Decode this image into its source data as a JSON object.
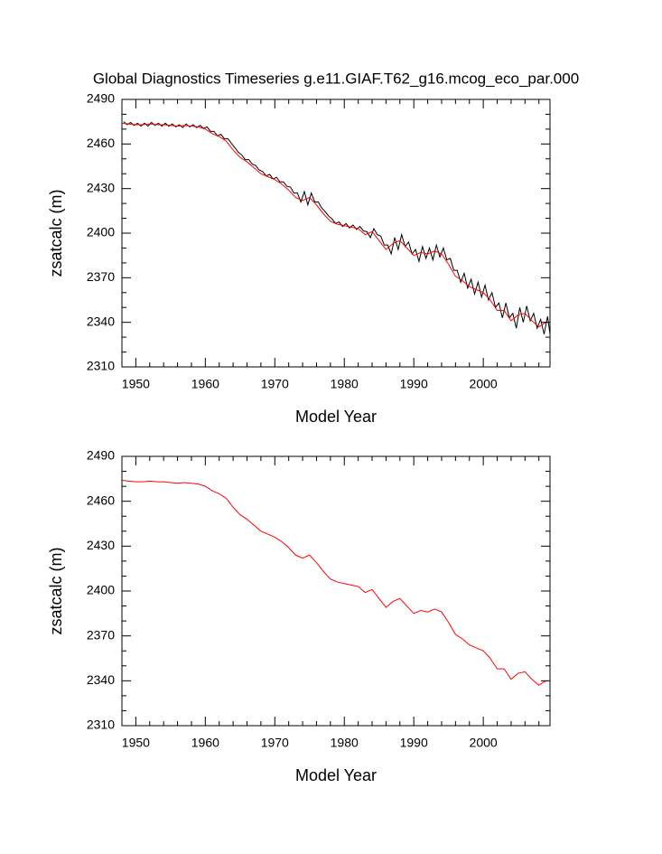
{
  "chart_data": [
    {
      "type": "line",
      "title": "Global Diagnostics Timeseries g.e11.GIAF.T62_g16.mcog_eco_par.000",
      "xlabel": "Model Year",
      "ylabel": "zsatcalc (m)",
      "xlim": [
        1948,
        2009.6
      ],
      "ylim": [
        2310,
        2490
      ],
      "xticks": [
        1950,
        1960,
        1970,
        1980,
        1990,
        2000
      ],
      "xminorticks": [
        1948,
        1952,
        1954,
        1956,
        1958,
        1962,
        1964,
        1966,
        1968,
        1972,
        1974,
        1976,
        1978,
        1982,
        1984,
        1986,
        1988,
        1992,
        1994,
        1996,
        1998,
        2002,
        2004,
        2006,
        2008
      ],
      "yticks": [
        2310,
        2340,
        2370,
        2400,
        2430,
        2460,
        2490
      ],
      "yminorticks": [
        2320,
        2330,
        2350,
        2360,
        2380,
        2390,
        2410,
        2420,
        2440,
        2450,
        2470,
        2480
      ],
      "series": [
        {
          "color": "#000000",
          "x": [
            1948.25,
            1948.75,
            1949.25,
            1949.75,
            1950.25,
            1950.75,
            1951.25,
            1951.75,
            1952.25,
            1952.75,
            1953.25,
            1953.75,
            1954.25,
            1954.75,
            1955.25,
            1955.75,
            1956.25,
            1956.75,
            1957.25,
            1957.75,
            1958.25,
            1958.75,
            1959.25,
            1959.75,
            1960.25,
            1960.75,
            1961.25,
            1961.75,
            1962.25,
            1962.75,
            1963.25,
            1963.75,
            1964.25,
            1964.75,
            1965.25,
            1965.75,
            1966.25,
            1966.75,
            1967.25,
            1967.75,
            1968.25,
            1968.75,
            1969.25,
            1969.75,
            1970.25,
            1970.75,
            1971.25,
            1971.75,
            1972.25,
            1972.75,
            1973.25,
            1973.75,
            1974.25,
            1974.75,
            1975.25,
            1975.75,
            1976.25,
            1976.75,
            1977.25,
            1977.75,
            1978.25,
            1978.75,
            1979.25,
            1979.75,
            1980.25,
            1980.75,
            1981.25,
            1981.75,
            1982.25,
            1982.75,
            1983.25,
            1983.75,
            1984.25,
            1984.75,
            1985.25,
            1985.75,
            1986.25,
            1986.75,
            1987.25,
            1987.75,
            1988.25,
            1988.75,
            1989.25,
            1989.75,
            1990.25,
            1990.75,
            1991.25,
            1991.75,
            1992.25,
            1992.75,
            1993.25,
            1993.75,
            1994.25,
            1994.75,
            1995.25,
            1995.75,
            1996.25,
            1996.75,
            1997.25,
            1997.75,
            1998.25,
            1998.75,
            1999.25,
            1999.75,
            2000.25,
            2000.75,
            2001.25,
            2001.75,
            2002.25,
            2002.75,
            2003.25,
            2003.75,
            2004.25,
            2004.75,
            2005.25,
            2005.75,
            2006.25,
            2006.75,
            2007.25,
            2007.75,
            2008.25,
            2008.75,
            2009.25,
            2009.6
          ],
          "values": [
            2475,
            2473,
            2474.5,
            2472.5,
            2474,
            2472,
            2474,
            2472,
            2474.5,
            2472.5,
            2474,
            2472,
            2474,
            2472,
            2473.5,
            2471.5,
            2473,
            2471,
            2473.5,
            2471.5,
            2473,
            2471,
            2472.5,
            2470.5,
            2471.5,
            2468.5,
            2468.5,
            2465.5,
            2466.5,
            2463.5,
            2463.5,
            2460.5,
            2457.5,
            2454.5,
            2452.5,
            2449.5,
            2449.5,
            2446.5,
            2445.5,
            2442.5,
            2441.5,
            2438.5,
            2439.5,
            2436.5,
            2437.5,
            2434.5,
            2434.5,
            2431.5,
            2431,
            2427,
            2427,
            2421,
            2428,
            2419,
            2427,
            2421,
            2421,
            2417,
            2414.5,
            2411.5,
            2409.5,
            2406.5,
            2407.5,
            2404.5,
            2406.5,
            2403.5,
            2405.5,
            2402.5,
            2404.5,
            2401.5,
            2401,
            2397,
            2403,
            2399,
            2398,
            2392,
            2392,
            2386,
            2397,
            2389,
            2399,
            2391,
            2394,
            2386,
            2389,
            2381,
            2391,
            2383,
            2390,
            2382,
            2392,
            2384,
            2390,
            2382,
            2383,
            2375,
            2375,
            2367,
            2373,
            2363,
            2369,
            2359,
            2367,
            2357,
            2365,
            2355,
            2360,
            2350,
            2353,
            2343,
            2353,
            2343,
            2346,
            2336,
            2350,
            2340,
            2351,
            2341,
            2346,
            2336,
            2342,
            2332,
            2344,
            2332
          ]
        },
        {
          "color": "#ff0000",
          "x": [
            1948,
            1949,
            1950,
            1951,
            1952,
            1953,
            1954,
            1955,
            1956,
            1957,
            1958,
            1959,
            1960,
            1961,
            1962,
            1963,
            1964,
            1965,
            1966,
            1967,
            1968,
            1969,
            1970,
            1971,
            1972,
            1973,
            1974,
            1975,
            1976,
            1977,
            1978,
            1979,
            1980,
            1981,
            1982,
            1983,
            1984,
            1985,
            1986,
            1987,
            1988,
            1989,
            1990,
            1991,
            1992,
            1993,
            1994,
            1995,
            1996,
            1997,
            1998,
            1999,
            2000,
            2001,
            2002,
            2003,
            2004,
            2005,
            2006,
            2007,
            2008,
            2009
          ],
          "values": [
            2474,
            2473.5,
            2473,
            2473,
            2473.5,
            2473,
            2473,
            2472.5,
            2472,
            2472.5,
            2472,
            2471.5,
            2470,
            2467,
            2465,
            2462,
            2456,
            2451,
            2448,
            2444,
            2440,
            2438,
            2436,
            2433,
            2429,
            2424,
            2422,
            2424,
            2419,
            2413,
            2408,
            2406,
            2405,
            2404,
            2403,
            2399,
            2401,
            2395,
            2389,
            2393,
            2395,
            2390,
            2385,
            2387,
            2386,
            2388,
            2386,
            2379,
            2371,
            2368,
            2364,
            2362,
            2360,
            2355,
            2348,
            2348,
            2341,
            2345,
            2346,
            2341,
            2337,
            2340
          ]
        }
      ]
    },
    {
      "type": "line",
      "xlabel": "Model Year",
      "ylabel": "zsatcalc (m)",
      "xlim": [
        1948,
        2009.6
      ],
      "ylim": [
        2310,
        2490
      ],
      "xticks": [
        1950,
        1960,
        1970,
        1980,
        1990,
        2000
      ],
      "xminorticks": [
        1948,
        1952,
        1954,
        1956,
        1958,
        1962,
        1964,
        1966,
        1968,
        1972,
        1974,
        1976,
        1978,
        1982,
        1984,
        1986,
        1988,
        1992,
        1994,
        1996,
        1998,
        2002,
        2004,
        2006,
        2008
      ],
      "yticks": [
        2310,
        2340,
        2370,
        2400,
        2430,
        2460,
        2490
      ],
      "yminorticks": [
        2320,
        2330,
        2350,
        2360,
        2380,
        2390,
        2410,
        2420,
        2440,
        2450,
        2470,
        2480
      ],
      "series": [
        {
          "color": "#ff0000",
          "x": [
            1948,
            1949,
            1950,
            1951,
            1952,
            1953,
            1954,
            1955,
            1956,
            1957,
            1958,
            1959,
            1960,
            1961,
            1962,
            1963,
            1964,
            1965,
            1966,
            1967,
            1968,
            1969,
            1970,
            1971,
            1972,
            1973,
            1974,
            1975,
            1976,
            1977,
            1978,
            1979,
            1980,
            1981,
            1982,
            1983,
            1984,
            1985,
            1986,
            1987,
            1988,
            1989,
            1990,
            1991,
            1992,
            1993,
            1994,
            1995,
            1996,
            1997,
            1998,
            1999,
            2000,
            2001,
            2002,
            2003,
            2004,
            2005,
            2006,
            2007,
            2008,
            2009
          ],
          "values": [
            2474,
            2473.5,
            2473,
            2473,
            2473.5,
            2473,
            2473,
            2472.5,
            2472,
            2472.5,
            2472,
            2471.5,
            2470,
            2467,
            2465,
            2462,
            2456,
            2451,
            2448,
            2444,
            2440,
            2438,
            2436,
            2433,
            2429,
            2424,
            2422,
            2424,
            2419,
            2413,
            2408,
            2406,
            2405,
            2404,
            2403,
            2399,
            2401,
            2395,
            2389,
            2393,
            2395,
            2390,
            2385,
            2387,
            2386,
            2388,
            2386,
            2379,
            2371,
            2368,
            2364,
            2362,
            2360,
            2355,
            2348,
            2348,
            2341,
            2345,
            2346,
            2341,
            2337,
            2340
          ]
        }
      ]
    }
  ]
}
